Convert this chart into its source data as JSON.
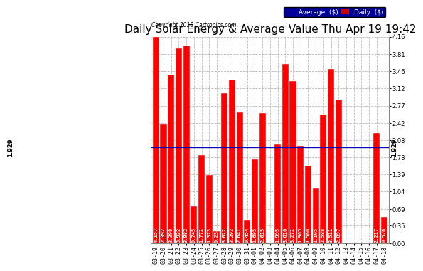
{
  "title": "Daily Solar Energy & Average Value Thu Apr 19 19:42",
  "copyright": "Copyright 2018 Cartronics.com",
  "categories": [
    "03-19",
    "03-20",
    "03-21",
    "03-22",
    "03-23",
    "03-24",
    "03-25",
    "03-26",
    "03-27",
    "03-28",
    "03-29",
    "03-30",
    "03-31",
    "04-01",
    "04-02",
    "04-03",
    "04-04",
    "04-05",
    "04-06",
    "04-07",
    "04-08",
    "04-09",
    "04-10",
    "04-11",
    "04-12",
    "04-13",
    "04-14",
    "04-15",
    "04-16",
    "04-17",
    "04-18"
  ],
  "values": [
    4.157,
    2.392,
    3.399,
    3.922,
    3.982,
    0.745,
    1.772,
    1.373,
    0.238,
    3.022,
    3.293,
    2.641,
    0.454,
    1.695,
    2.615,
    0.0,
    1.995,
    3.616,
    3.272,
    1.965,
    1.56,
    1.105,
    2.588,
    3.511,
    2.897,
    0.0,
    0.0,
    0.0,
    0.0,
    2.217,
    0.526
  ],
  "average": 1.929,
  "bar_color": "#FF0000",
  "avg_line_color": "#0000BB",
  "ylim": [
    0.0,
    4.16
  ],
  "yticks": [
    0.0,
    0.35,
    0.69,
    1.04,
    1.39,
    1.73,
    2.08,
    2.42,
    2.77,
    3.12,
    3.46,
    3.81,
    4.16
  ],
  "background_color": "#FFFFFF",
  "plot_bg_color": "#FFFFFF",
  "grid_color": "#BBBBBB",
  "bar_edge_color": "#FFFFFF",
  "legend_avg_bg": "#000099",
  "legend_daily_bg": "#CC0000",
  "title_fontsize": 11,
  "axis_fontsize": 6,
  "value_fontsize": 5
}
